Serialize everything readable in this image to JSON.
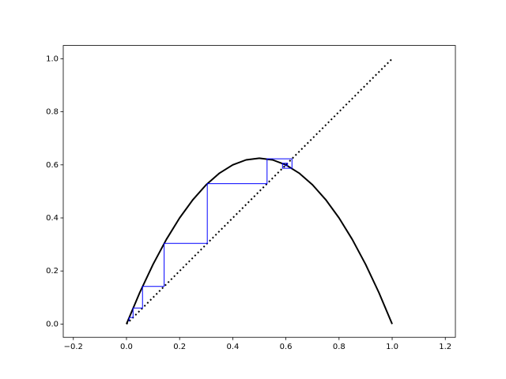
{
  "chart_data": {
    "type": "line",
    "xlim": [
      -0.238,
      1.238
    ],
    "ylim": [
      -0.05,
      1.05
    ],
    "xticks": [
      {
        "value": -0.2,
        "label": "−0.2"
      },
      {
        "value": 0,
        "label": "0.0"
      },
      0.2,
      0.4,
      0.6,
      0.8,
      {
        "value": 1,
        "label": "1.0"
      },
      1.2
    ],
    "yticks": [
      {
        "value": 0,
        "label": "0.0"
      },
      0.2,
      0.4,
      0.6,
      0.8,
      {
        "value": 1,
        "label": "1.0"
      }
    ],
    "series": [
      {
        "color": "#000000",
        "width": 2,
        "style": "solid",
        "x": [
          0,
          0.05,
          0.1,
          0.15,
          0.2,
          0.25,
          0.3,
          0.35,
          0.4,
          0.45,
          0.5,
          0.55,
          0.6,
          0.65,
          0.7,
          0.75,
          0.8,
          0.85,
          0.9,
          0.95,
          1
        ],
        "values": [
          0,
          0.11875,
          0.225,
          0.31875,
          0.4,
          0.46875,
          0.525,
          0.56875,
          0.6,
          0.61875,
          0.625,
          0.61875,
          0.6,
          0.56875,
          0.525,
          0.46875,
          0.4,
          0.31875,
          0.225,
          0.11875,
          0
        ]
      },
      {
        "color": "#000000",
        "width": 2,
        "style": "dotted",
        "x": [
          0,
          1
        ],
        "values": [
          0,
          1
        ]
      },
      {
        "color": "#0000ff",
        "width": 1,
        "style": "solid",
        "x": [
          0.01,
          0.01,
          0.02475,
          0.02475,
          0.060344,
          0.060344,
          0.141757,
          0.141757,
          0.304155,
          0.304155,
          0.529112,
          0.529112,
          0.622882,
          0.622882,
          0.58725,
          0.58725,
          0.605969,
          0.605969,
          0.596926,
          0.596926
        ],
        "values": [
          0.01,
          0.02475,
          0.02475,
          0.060344,
          0.060344,
          0.141757,
          0.141757,
          0.304155,
          0.304155,
          0.529112,
          0.529112,
          0.622882,
          0.622882,
          0.58725,
          0.58725,
          0.605969,
          0.605969,
          0.596926,
          0.596926,
          0.601513
        ]
      }
    ]
  }
}
